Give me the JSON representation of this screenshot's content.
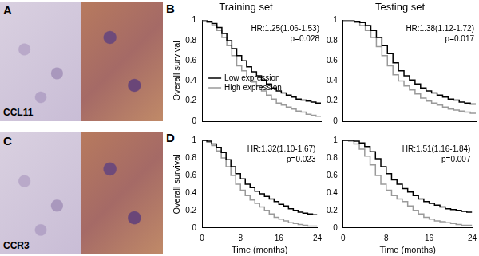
{
  "figure": {
    "panel_labels": [
      "A",
      "B",
      "C",
      "D"
    ],
    "image_labels": [
      "CCL11",
      "CCR3"
    ]
  },
  "chart_data": [
    {
      "type": "line",
      "title": "Training set",
      "y_label": "Overall survival",
      "tick_labels": "y",
      "x": [
        0,
        1,
        2,
        3,
        4,
        5,
        6,
        7,
        8,
        9,
        10,
        11,
        12,
        13,
        14,
        15,
        16,
        17,
        18,
        19,
        20,
        21,
        22,
        23,
        24
      ],
      "xlim": [
        0,
        24
      ],
      "xticks": [
        0,
        8,
        16,
        24
      ],
      "ylim": [
        0,
        1
      ],
      "yticks": [
        0,
        0.2,
        0.4,
        0.6,
        0.8,
        1
      ],
      "grid": false,
      "legend": "lower left",
      "line_style": "step",
      "annotations": [
        "HR:1.25(1.06-1.53)",
        "p=0.028"
      ],
      "series": [
        {
          "name": "Low expression",
          "color": "#000000",
          "values": [
            1,
            1,
            0.99,
            0.97,
            0.93,
            0.87,
            0.8,
            0.72,
            0.65,
            0.6,
            0.54,
            0.49,
            0.45,
            0.41,
            0.37,
            0.33,
            0.3,
            0.28,
            0.26,
            0.24,
            0.22,
            0.21,
            0.2,
            0.19,
            0.18
          ]
        },
        {
          "name": "High expression",
          "color": "#9a9a9a",
          "values": [
            1,
            1,
            0.98,
            0.95,
            0.9,
            0.83,
            0.75,
            0.65,
            0.55,
            0.5,
            0.44,
            0.39,
            0.35,
            0.3,
            0.26,
            0.22,
            0.18,
            0.16,
            0.14,
            0.12,
            0.1,
            0.09,
            0.07,
            0.06,
            0.05
          ]
        }
      ]
    },
    {
      "type": "line",
      "title": "Testing set",
      "tick_labels": "y",
      "x": [
        0,
        1,
        2,
        3,
        4,
        5,
        6,
        7,
        8,
        9,
        10,
        11,
        12,
        13,
        14,
        15,
        16,
        17,
        18,
        19,
        20,
        21,
        22,
        23,
        24
      ],
      "xlim": [
        0,
        24
      ],
      "xticks": [
        0,
        8,
        16,
        24
      ],
      "ylim": [
        0,
        1
      ],
      "yticks": [
        0,
        0.2,
        0.4,
        0.6,
        0.8,
        1
      ],
      "grid": false,
      "line_style": "step",
      "annotations": [
        "HR:1.38(1.12-1.72)",
        "p=0.017"
      ],
      "series": [
        {
          "color": "#000000",
          "values": [
            1,
            1,
            1,
            0.99,
            0.98,
            0.95,
            0.9,
            0.83,
            0.75,
            0.67,
            0.58,
            0.5,
            0.45,
            0.41,
            0.37,
            0.33,
            0.3,
            0.28,
            0.26,
            0.24,
            0.22,
            0.21,
            0.19,
            0.18,
            0.17
          ]
        },
        {
          "color": "#9a9a9a",
          "values": [
            1,
            1,
            1,
            0.98,
            0.95,
            0.9,
            0.83,
            0.74,
            0.65,
            0.55,
            0.46,
            0.4,
            0.35,
            0.31,
            0.27,
            0.23,
            0.2,
            0.18,
            0.16,
            0.14,
            0.12,
            0.11,
            0.1,
            0.09,
            0.08
          ]
        }
      ]
    },
    {
      "type": "line",
      "x_label": "Time (months)",
      "y_label": "Overall survival",
      "x": [
        0,
        1,
        2,
        3,
        4,
        5,
        6,
        7,
        8,
        9,
        10,
        11,
        12,
        13,
        14,
        15,
        16,
        17,
        18,
        19,
        20,
        21,
        22,
        23,
        24
      ],
      "xlim": [
        0,
        24
      ],
      "xticks": [
        0,
        8,
        16,
        24
      ],
      "ylim": [
        0,
        1
      ],
      "yticks": [
        0,
        0.2,
        0.4,
        0.6,
        0.8,
        1
      ],
      "grid": false,
      "line_style": "step",
      "annotations": [
        "HR:1.32(1.10-1.67)",
        "p=0.023"
      ],
      "series": [
        {
          "color": "#000000",
          "values": [
            1,
            1,
            0.99,
            0.96,
            0.92,
            0.86,
            0.78,
            0.7,
            0.62,
            0.56,
            0.5,
            0.46,
            0.42,
            0.39,
            0.36,
            0.33,
            0.3,
            0.27,
            0.25,
            0.22,
            0.2,
            0.18,
            0.17,
            0.16,
            0.15
          ]
        },
        {
          "color": "#9a9a9a",
          "values": [
            1,
            1,
            0.98,
            0.94,
            0.88,
            0.8,
            0.7,
            0.6,
            0.5,
            0.43,
            0.37,
            0.32,
            0.28,
            0.24,
            0.2,
            0.16,
            0.12,
            0.1,
            0.08,
            0.06,
            0.05,
            0.04,
            0.03,
            0.02,
            0.02
          ]
        }
      ]
    },
    {
      "type": "line",
      "x_label": "Time (months)",
      "x": [
        0,
        1,
        2,
        3,
        4,
        5,
        6,
        7,
        8,
        9,
        10,
        11,
        12,
        13,
        14,
        15,
        16,
        17,
        18,
        19,
        20,
        21,
        22,
        23,
        24
      ],
      "xlim": [
        0,
        24
      ],
      "xticks": [
        0,
        8,
        16,
        24
      ],
      "ylim": [
        0,
        1
      ],
      "yticks": [
        0,
        0.2,
        0.4,
        0.6,
        0.8,
        1
      ],
      "grid": false,
      "line_style": "step",
      "annotations": [
        "HR:1.51(1.16-1.84)",
        "p=0.007"
      ],
      "series": [
        {
          "color": "#000000",
          "values": [
            1,
            1,
            1,
            0.99,
            0.97,
            0.93,
            0.87,
            0.79,
            0.7,
            0.62,
            0.55,
            0.5,
            0.45,
            0.41,
            0.37,
            0.33,
            0.3,
            0.28,
            0.26,
            0.24,
            0.22,
            0.21,
            0.2,
            0.19,
            0.18
          ]
        },
        {
          "color": "#9a9a9a",
          "values": [
            1,
            1,
            0.99,
            0.96,
            0.9,
            0.82,
            0.72,
            0.6,
            0.5,
            0.43,
            0.37,
            0.33,
            0.3,
            0.25,
            0.2,
            0.16,
            0.12,
            0.1,
            0.08,
            0.07,
            0.06,
            0.05,
            0.04,
            0.03,
            0.03
          ]
        }
      ]
    }
  ]
}
